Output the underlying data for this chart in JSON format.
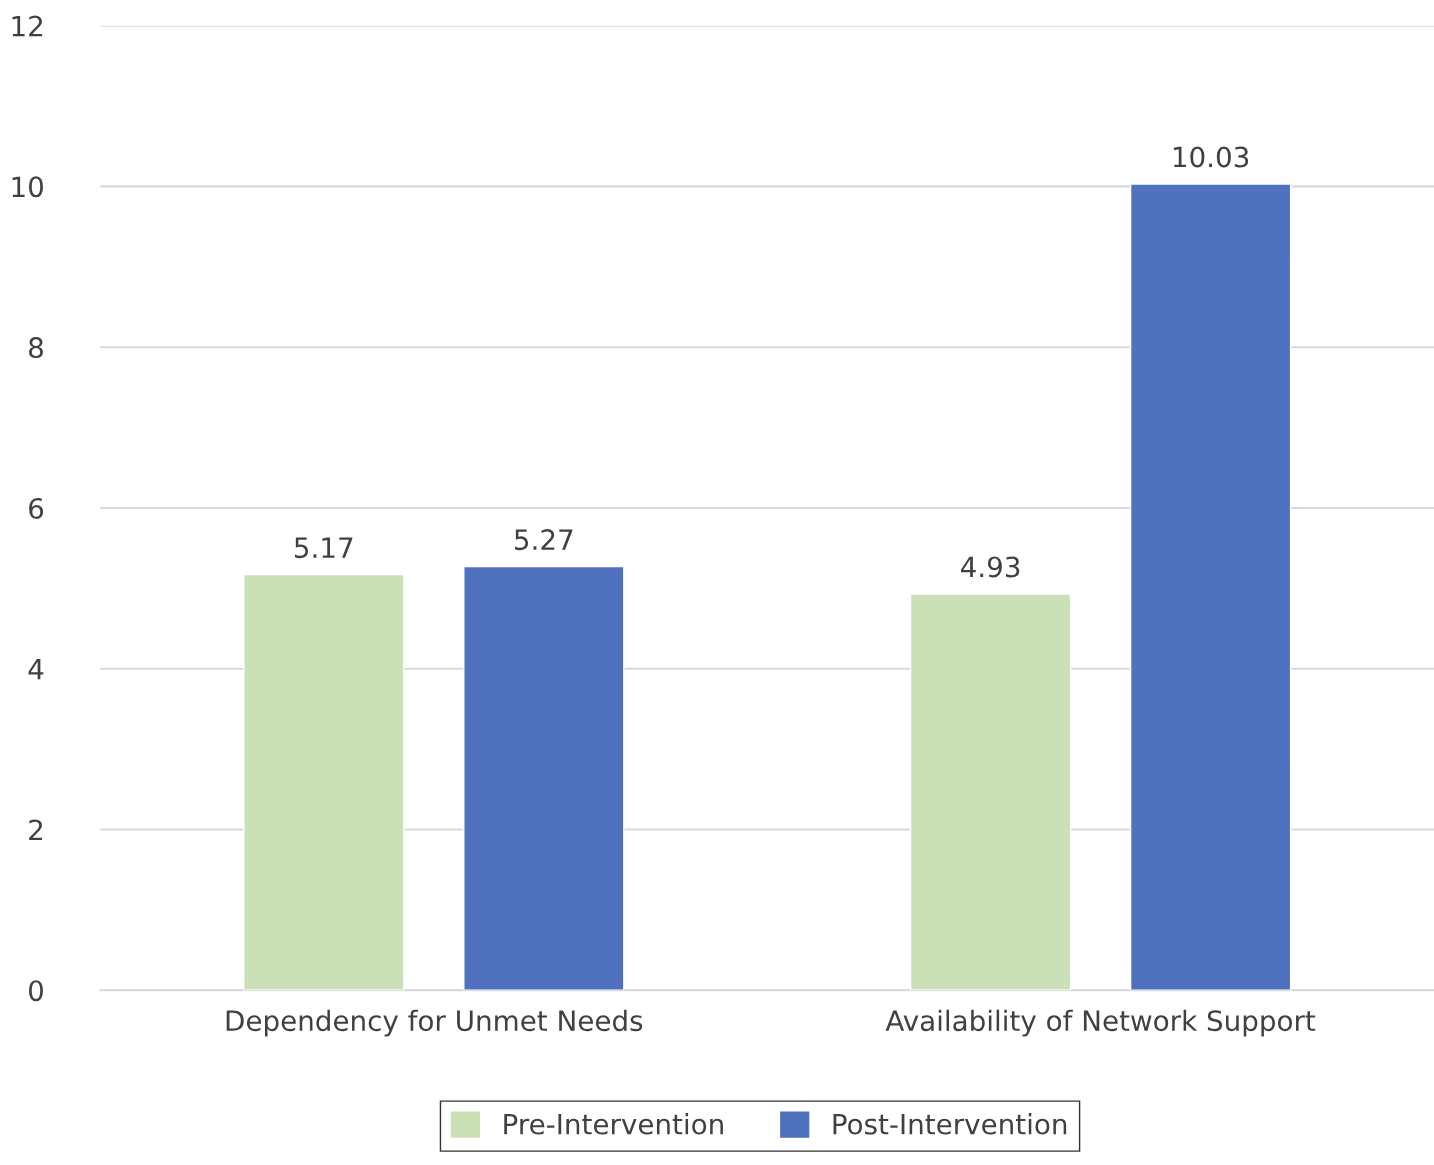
{
  "chart_data": {
    "type": "bar",
    "categories": [
      "Dependency for Unmet Needs",
      "Availability of Network Support"
    ],
    "series": [
      {
        "name": "Pre-Intervention",
        "color": "#cce0b8",
        "values": [
          5.17,
          4.93
        ]
      },
      {
        "name": "Post-Intervention",
        "color": "#4f71be",
        "values": [
          5.27,
          10.03
        ]
      }
    ],
    "ylim": [
      0,
      12
    ],
    "yticks": [
      0,
      2,
      4,
      6,
      8,
      10,
      12
    ],
    "grid": "y",
    "legend": "bottom",
    "data_labels": true
  }
}
